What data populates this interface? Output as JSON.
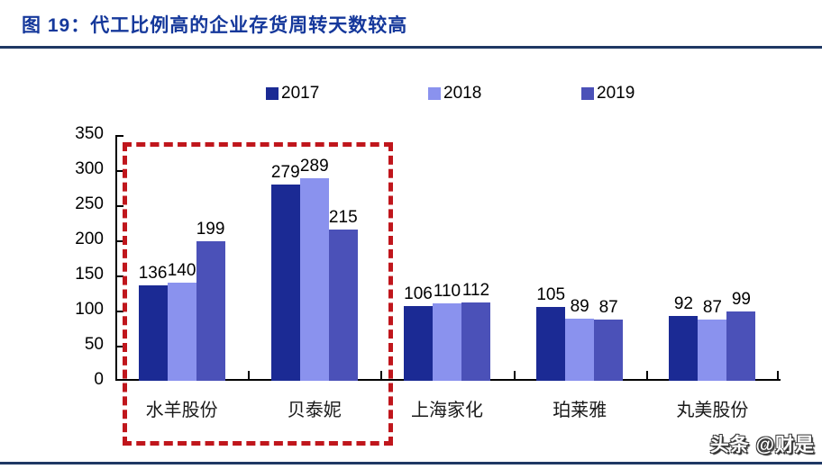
{
  "header": {
    "figure_label": "图 19：",
    "title": "代工比例高的企业存货周转天数较高"
  },
  "legend": {
    "items": [
      {
        "label": "2017",
        "color": "#1B2A94"
      },
      {
        "label": "2018",
        "color": "#8A92EE"
      },
      {
        "label": "2019",
        "color": "#4B51B8"
      }
    ]
  },
  "chart_data": {
    "type": "bar",
    "title": "代工比例高的企业存货周转天数较高",
    "categories": [
      "水羊股份",
      "贝泰妮",
      "上海家化",
      "珀莱雅",
      "丸美股份"
    ],
    "series": [
      {
        "name": "2017",
        "color": "#1B2A94",
        "values": [
          136,
          279,
          106,
          105,
          92
        ]
      },
      {
        "name": "2018",
        "color": "#8A92EE",
        "values": [
          140,
          289,
          110,
          89,
          87
        ]
      },
      {
        "name": "2019",
        "color": "#4B51B8",
        "values": [
          199,
          215,
          112,
          87,
          99
        ]
      }
    ],
    "xlabel": "",
    "ylabel": "",
    "ylim": [
      0,
      350
    ],
    "yticks": [
      0,
      50,
      100,
      150,
      200,
      250,
      300,
      350
    ],
    "grid": false,
    "legend_position": "top",
    "data_labels": true,
    "highlight_box": {
      "categories": [
        "水羊股份",
        "贝泰妮"
      ],
      "color": "#C0161C",
      "style": "dashed"
    }
  },
  "watermark": {
    "text": "头条 @财是"
  }
}
